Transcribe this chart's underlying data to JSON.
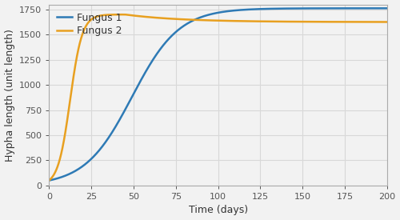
{
  "title": "",
  "xlabel": "Time (days)",
  "ylabel": "Hypha length (unit length)",
  "fungus1_color": "#2e7ab5",
  "fungus2_color": "#e8a020",
  "legend_labels": [
    "Fungus 1",
    "Fungus 2"
  ],
  "xlim": [
    0,
    200
  ],
  "ylim": [
    0,
    1800
  ],
  "xticks": [
    0,
    25,
    50,
    75,
    100,
    125,
    150,
    175,
    200
  ],
  "yticks": [
    0,
    250,
    500,
    750,
    1000,
    1250,
    1500,
    1750
  ],
  "fungus1_K": 1762,
  "fungus1_r": 0.072,
  "fungus1_y0": 50,
  "fungus2_y0": 50,
  "fungus2_r": 0.28,
  "fungus2_K_rise": 1700,
  "fungus2_K_fall": 1625,
  "fungus2_peak_t": 45,
  "fungus2_fall_r": 0.03,
  "background_color": "#f2f2f2",
  "grid_color": "#d8d8d8",
  "label_fontsize": 9,
  "tick_fontsize": 8,
  "line_width": 1.8,
  "spine_color": "#aaaaaa",
  "tick_color": "#555555"
}
